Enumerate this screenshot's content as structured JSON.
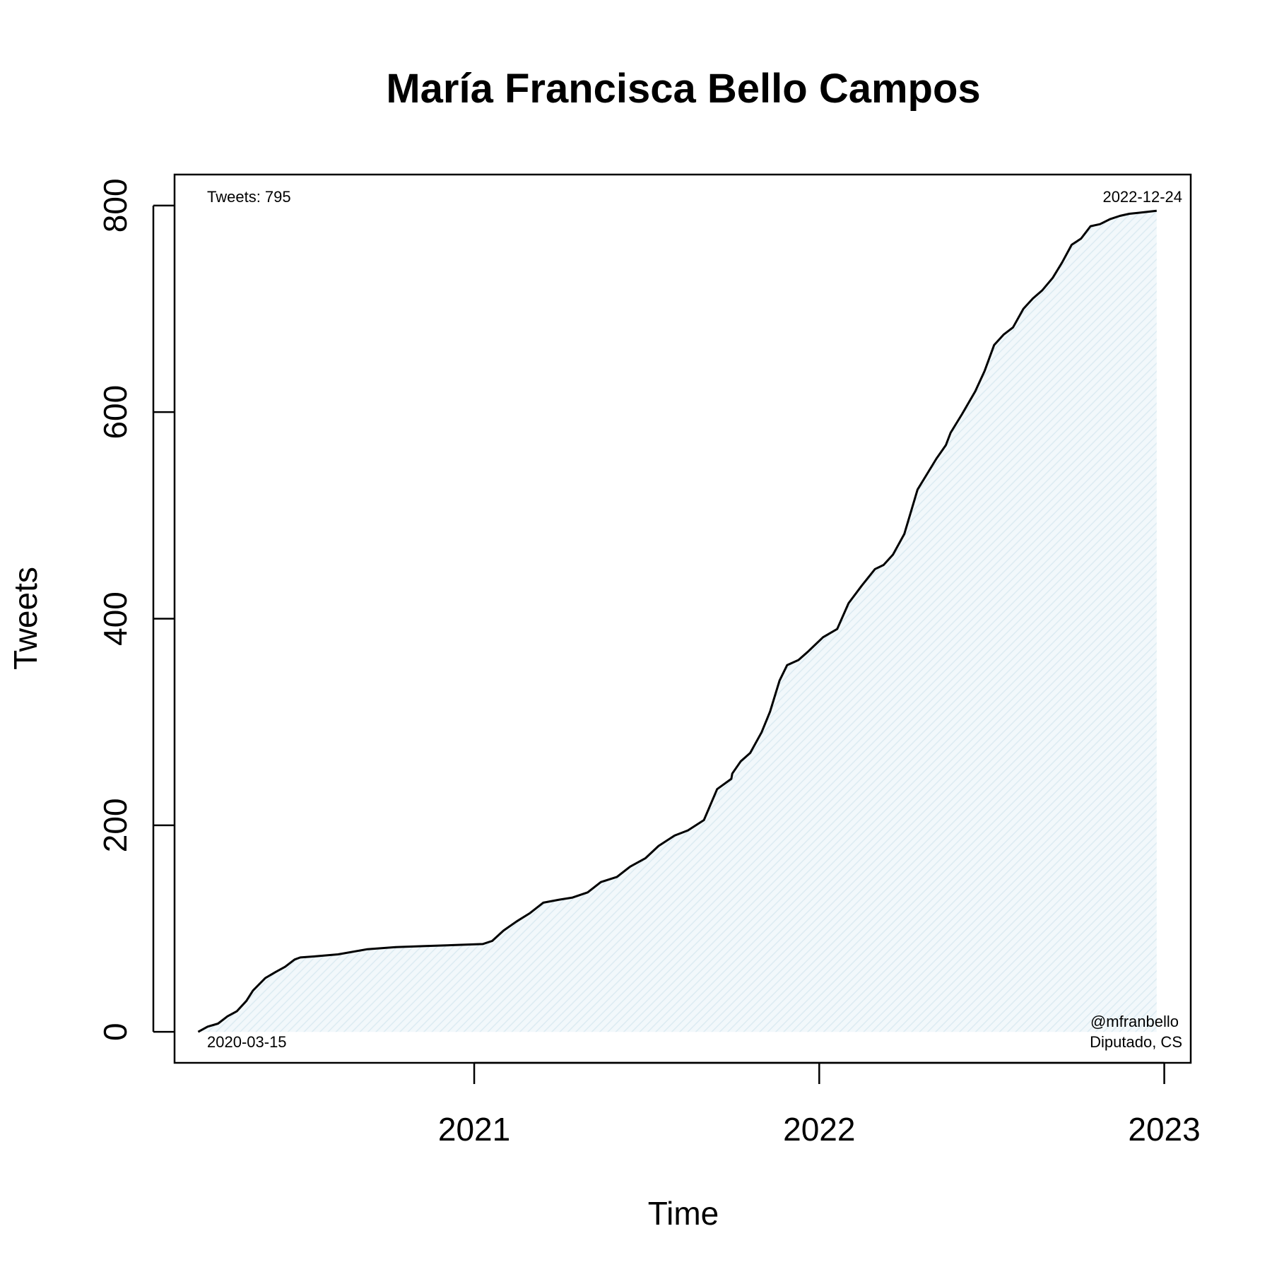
{
  "chart_data": {
    "type": "line",
    "title": "María Francisca Bello Campos",
    "xlabel": "Time",
    "ylabel": "Tweets",
    "x_ticks": [
      "2021",
      "2022",
      "2023"
    ],
    "y_ticks": [
      0,
      200,
      400,
      600,
      800
    ],
    "ylim": [
      -30,
      830
    ],
    "xlim": [
      "2020-02-19",
      "2023-01-29"
    ],
    "grid": false,
    "fill": "light-blue hatched area under curve",
    "colors": {
      "line": "#000000",
      "fill": "#dcebf2"
    },
    "annotations": {
      "top_left": "Tweets: 795",
      "top_right": "2022-12-24",
      "bottom_left": "2020-03-15",
      "bottom_right_1": "@mfranbello",
      "bottom_right_2": "Diputado, CS"
    },
    "series": [
      {
        "x": [
          "2020-03-15",
          "2020-03-25",
          "2020-04-05",
          "2020-04-15",
          "2020-04-25",
          "2020-05-05",
          "2020-05-12",
          "2020-05-25",
          "2020-06-05",
          "2020-06-15",
          "2020-06-25",
          "2020-07-01",
          "2020-07-15",
          "2020-08-10",
          "2020-09-10",
          "2020-10-10",
          "2020-11-10",
          "2020-12-10",
          "2021-01-10",
          "2021-01-20",
          "2021-02-01",
          "2021-02-15",
          "2021-03-01",
          "2021-03-15",
          "2021-04-01",
          "2021-04-15",
          "2021-05-01",
          "2021-05-15",
          "2021-06-01",
          "2021-06-15",
          "2021-07-01",
          "2021-07-15",
          "2021-08-01",
          "2021-08-15",
          "2021-09-01",
          "2021-09-15",
          "2021-09-30",
          "2021-10-01",
          "2021-10-10",
          "2021-10-20",
          "2021-11-01",
          "2021-11-10",
          "2021-11-20",
          "2021-11-28",
          "2021-12-10",
          "2021-12-20",
          "2022-01-05",
          "2022-01-20",
          "2022-02-01",
          "2022-02-15",
          "2022-03-01",
          "2022-03-10",
          "2022-03-20",
          "2022-04-01",
          "2022-04-15",
          "2022-04-25",
          "2022-05-05",
          "2022-05-15",
          "2022-05-20",
          "2022-06-01",
          "2022-06-15",
          "2022-06-25",
          "2022-07-05",
          "2022-07-15",
          "2022-07-25",
          "2022-08-05",
          "2022-08-15",
          "2022-08-25",
          "2022-09-05",
          "2022-09-15",
          "2022-09-25",
          "2022-10-05",
          "2022-10-15",
          "2022-10-25",
          "2022-11-05",
          "2022-11-15",
          "2022-11-25",
          "2022-12-05",
          "2022-12-15",
          "2022-12-24"
        ],
        "y": [
          0,
          5,
          8,
          15,
          20,
          30,
          40,
          52,
          58,
          63,
          70,
          72,
          73,
          75,
          80,
          82,
          83,
          84,
          85,
          88,
          98,
          107,
          115,
          125,
          128,
          130,
          135,
          145,
          150,
          160,
          168,
          180,
          190,
          195,
          205,
          235,
          245,
          250,
          262,
          270,
          290,
          310,
          340,
          355,
          360,
          368,
          382,
          390,
          415,
          432,
          448,
          452,
          462,
          482,
          525,
          540,
          555,
          568,
          580,
          598,
          620,
          640,
          665,
          675,
          682,
          700,
          710,
          718,
          730,
          745,
          762,
          768,
          780,
          782,
          787,
          790,
          792,
          793,
          794,
          795
        ]
      }
    ]
  }
}
